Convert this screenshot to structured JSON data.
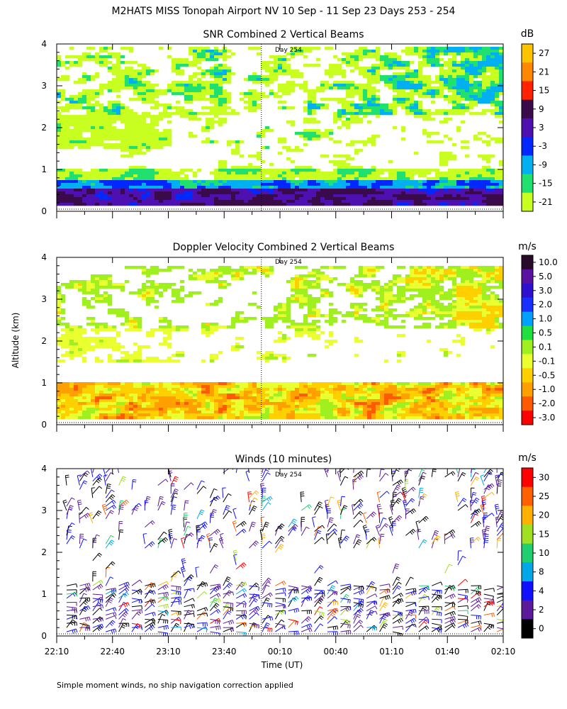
{
  "figure": {
    "title": "M2HATS MISS Tonopah Airport NV  10 Sep - 11 Sep 23 Days 253 - 254",
    "shared_ylabel": "Altitude (km)",
    "xlabel": "Time (UT)",
    "footnote": "Simple moment winds, no ship navigation correction applied",
    "day_marker": "Day 254",
    "day_marker_time": "00:00",
    "xticks": [
      "22:10",
      "22:40",
      "23:10",
      "23:40",
      "00:10",
      "00:40",
      "01:10",
      "01:40",
      "02:10"
    ],
    "yticks": [
      "0",
      "1",
      "2",
      "3",
      "4"
    ]
  },
  "chart_data": [
    {
      "type": "heatmap",
      "title": "SNR Combined 2 Vertical Beams",
      "colorbar_unit": "dB",
      "colorbar_ticks": [
        "27",
        "21",
        "15",
        "9",
        "3",
        "-3",
        "-9",
        "-15",
        "-21"
      ],
      "colorbar_colors": [
        "#ffc400",
        "#ff8800",
        "#ff2200",
        "#3a0a4a",
        "#4e10b0",
        "#0028ff",
        "#00b0f0",
        "#20e070",
        "#c8ff20"
      ],
      "xlim": [
        "22:10",
        "02:10"
      ],
      "ylim": [
        0,
        4
      ],
      "layers": [
        {
          "alt_km": [
            0.1,
            0.7
          ],
          "snr_db": "-3 to 15 (strongest near surface)"
        },
        {
          "alt_km": [
            0.7,
            1.0
          ],
          "snr_db": "-21 to -9"
        },
        {
          "alt_km": [
            1.5,
            2.3
          ],
          "snr_db": "-21 to -15"
        },
        {
          "alt_km": [
            2.3,
            3.9
          ],
          "snr_db": "-21 to -3"
        }
      ]
    },
    {
      "type": "heatmap",
      "title": "Doppler Velocity Combined 2 Vertical Beams",
      "colorbar_unit": "m/s",
      "colorbar_ticks": [
        "10.0",
        "5.0",
        "3.0",
        "2.0",
        "1.0",
        "0.5",
        "0.1",
        "-0.1",
        "-0.5",
        "-1.0",
        "-2.0",
        "-3.0"
      ],
      "colorbar_colors": [
        "#2a0a2a",
        "#5a10a0",
        "#3010d0",
        "#1a30ff",
        "#00a0ff",
        "#20e040",
        "#a0f020",
        "#eaff30",
        "#ffd000",
        "#ffa000",
        "#ff5a00",
        "#ff0000"
      ],
      "xlim": [
        "22:10",
        "02:10"
      ],
      "ylim": [
        0,
        4
      ],
      "layers": [
        {
          "alt_km": [
            0.1,
            1.0
          ],
          "velocity_ms": "-1.0 to 0.1"
        },
        {
          "alt_km": [
            1.5,
            2.3
          ],
          "velocity_ms": "-0.1 to 0.1"
        },
        {
          "alt_km": [
            2.3,
            3.8
          ],
          "velocity_ms": "-1.0 to 0.1"
        }
      ]
    },
    {
      "type": "scatter",
      "title": "Winds (10 minutes)",
      "colorbar_unit": "m/s",
      "colorbar_ticks": [
        "30",
        "25",
        "20",
        "15",
        "10",
        "8",
        "4",
        "2",
        "0"
      ],
      "colorbar_colors": [
        "#ff0000",
        "#ff6000",
        "#ffb000",
        "#a0e020",
        "#20d070",
        "#00a8e8",
        "#1010ff",
        "#5a1a9a",
        "#000000"
      ],
      "xlim": [
        "22:10",
        "02:10"
      ],
      "ylim": [
        0,
        4
      ],
      "marker": "wind barbs",
      "predominant_speed_ms": "2 to 8"
    }
  ]
}
